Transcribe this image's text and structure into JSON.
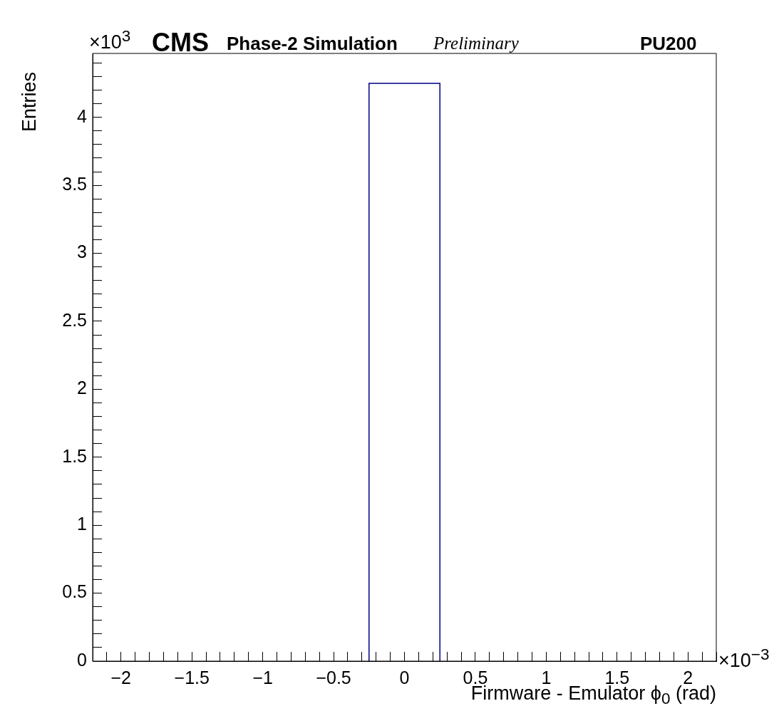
{
  "chart_data": {
    "type": "histogram",
    "title": "CMS",
    "subtitle": "Phase-2 Simulation",
    "xlabel": "Firmware - Emulator  ϕ$_{0}$ (rad)",
    "ylabel": "Entries",
    "annotations": [
      "Preliminary",
      "PU200",
      "×10$^{3}$",
      "×10$^{−3}$"
    ],
    "bins": [
      -0.25,
      0.25
    ],
    "values": [
      4.25
    ],
    "color": "#000080",
    "xlim": [
      -2.2,
      2.2
    ],
    "ylim": [
      0,
      4.47
    ],
    "xticks": [
      {
        "value": -2.2,
        "label": null
      },
      {
        "value": -2.1,
        "label": null
      },
      {
        "value": -2,
        "label": "−2"
      },
      {
        "value": -1.9,
        "label": null
      },
      {
        "value": -1.8,
        "label": null
      },
      {
        "value": -1.7,
        "label": null
      },
      {
        "value": -1.6,
        "label": null
      },
      {
        "value": -1.5,
        "label": "−1.5"
      },
      {
        "value": -1.4,
        "label": null
      },
      {
        "value": -1.3,
        "label": null
      },
      {
        "value": -1.2,
        "label": null
      },
      {
        "value": -1.1,
        "label": null
      },
      {
        "value": -1,
        "label": "−1"
      },
      {
        "value": -0.9,
        "label": null
      },
      {
        "value": -0.8,
        "label": null
      },
      {
        "value": -0.7,
        "label": null
      },
      {
        "value": -0.6,
        "label": null
      },
      {
        "value": -0.5,
        "label": "−0.5"
      },
      {
        "value": -0.4,
        "label": null
      },
      {
        "value": -0.3,
        "label": null
      },
      {
        "value": -0.2,
        "label": null
      },
      {
        "value": -0.1,
        "label": null
      },
      0,
      {
        "value": 0.1,
        "label": null
      },
      {
        "value": 0.2,
        "label": null
      },
      {
        "value": 0.3,
        "label": null
      },
      {
        "value": 0.4,
        "label": null
      },
      0.5,
      {
        "value": 0.6,
        "label": null
      },
      {
        "value": 0.7,
        "label": null
      },
      {
        "value": 0.8,
        "label": null
      },
      {
        "value": 0.9,
        "label": null
      },
      1,
      {
        "value": 1.1,
        "label": null
      },
      {
        "value": 1.2,
        "label": null
      },
      {
        "value": 1.3,
        "label": null
      },
      {
        "value": 1.4,
        "label": null
      },
      1.5,
      {
        "value": 1.6,
        "label": null
      },
      {
        "value": 1.7,
        "label": null
      },
      {
        "value": 1.8,
        "label": null
      },
      {
        "value": 1.9,
        "label": null
      },
      2,
      {
        "value": 2.1,
        "label": null
      },
      {
        "value": 2.2,
        "label": null
      }
    ],
    "yticks": [
      0,
      {
        "value": 0.1,
        "label": null
      },
      {
        "value": 0.2,
        "label": null
      },
      {
        "value": 0.3,
        "label": null
      },
      {
        "value": 0.4,
        "label": null
      },
      0.5,
      {
        "value": 0.6,
        "label": null
      },
      {
        "value": 0.7,
        "label": null
      },
      {
        "value": 0.8,
        "label": null
      },
      {
        "value": 0.9,
        "label": null
      },
      1,
      {
        "value": 1.1,
        "label": null
      },
      {
        "value": 1.2,
        "label": null
      },
      {
        "value": 1.3,
        "label": null
      },
      {
        "value": 1.4,
        "label": null
      },
      1.5,
      {
        "value": 1.6,
        "label": null
      },
      {
        "value": 1.7,
        "label": null
      },
      {
        "value": 1.8,
        "label": null
      },
      {
        "value": 1.9,
        "label": null
      },
      2,
      {
        "value": 2.1,
        "label": null
      },
      {
        "value": 2.2,
        "label": null
      },
      {
        "value": 2.3,
        "label": null
      },
      {
        "value": 2.4,
        "label": null
      },
      2.5,
      {
        "value": 2.6,
        "label": null
      },
      {
        "value": 2.7,
        "label": null
      },
      {
        "value": 2.8,
        "label": null
      },
      {
        "value": 2.9,
        "label": null
      },
      3,
      {
        "value": 3.1,
        "label": null
      },
      {
        "value": 3.2,
        "label": null
      },
      {
        "value": 3.3,
        "label": null
      },
      {
        "value": 3.4,
        "label": null
      },
      3.5,
      {
        "value": 3.6,
        "label": null
      },
      {
        "value": 3.7,
        "label": null
      },
      {
        "value": 3.8,
        "label": null
      },
      {
        "value": 3.9,
        "label": null
      },
      4,
      {
        "value": 4.1,
        "label": null
      },
      {
        "value": 4.2,
        "label": null
      },
      {
        "value": 4.3,
        "label": null
      },
      {
        "value": 4.4,
        "label": null
      }
    ],
    "grid": false,
    "legend": false
  }
}
